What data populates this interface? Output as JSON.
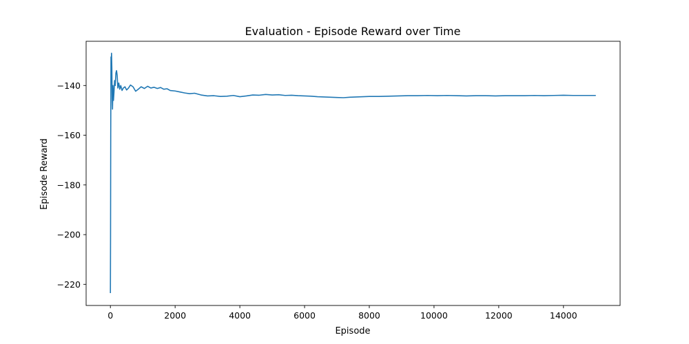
{
  "chart_data": {
    "type": "line",
    "title": "Evaluation - Episode Reward over Time",
    "xlabel": "Episode",
    "ylabel": "Episode Reward",
    "xlim": [
      -750,
      15750
    ],
    "ylim": [
      -228.5,
      -122.2
    ],
    "xticks": [
      0,
      2000,
      4000,
      6000,
      8000,
      10000,
      12000,
      14000
    ],
    "yticks": [
      -220,
      -200,
      -180,
      -160,
      -140
    ],
    "grid": false,
    "legend": "none",
    "series": [
      {
        "color": "#1f77b4",
        "x": [
          0,
          5,
          10,
          18,
          25,
          35,
          45,
          55,
          65,
          80,
          95,
          110,
          130,
          150,
          170,
          190,
          210,
          230,
          260,
          290,
          320,
          360,
          400,
          450,
          500,
          560,
          620,
          700,
          780,
          860,
          950,
          1050,
          1150,
          1250,
          1350,
          1450,
          1550,
          1650,
          1750,
          1850,
          2000,
          2150,
          2300,
          2450,
          2600,
          2800,
          3000,
          3200,
          3400,
          3600,
          3800,
          4000,
          4200,
          4400,
          4600,
          4800,
          5000,
          5200,
          5400,
          5600,
          5800,
          6000,
          6200,
          6400,
          6600,
          6800,
          7000,
          7200,
          7400,
          7600,
          7800,
          8000,
          8300,
          8600,
          8900,
          9200,
          9500,
          9800,
          10100,
          10400,
          10700,
          11000,
          11300,
          11600,
          11900,
          12200,
          12500,
          12800,
          13100,
          13400,
          13700,
          14000,
          14300,
          14600,
          15000
        ],
        "y": [
          -223.5,
          -200,
          -160,
          -128.5,
          -131,
          -127,
          -133,
          -145,
          -149.5,
          -140,
          -146,
          -143,
          -138,
          -140,
          -135,
          -134,
          -136,
          -141,
          -139,
          -141.5,
          -140,
          -142,
          -141,
          -140.5,
          -141.8,
          -141,
          -139.8,
          -140.5,
          -142.3,
          -141.5,
          -140.5,
          -141.2,
          -140.3,
          -141,
          -140.7,
          -141.2,
          -140.8,
          -141.5,
          -141.3,
          -142,
          -142.2,
          -142.6,
          -143,
          -143.3,
          -143.1,
          -143.8,
          -144.2,
          -144.1,
          -144.4,
          -144.3,
          -144,
          -144.5,
          -144.2,
          -143.8,
          -143.9,
          -143.6,
          -143.8,
          -143.7,
          -144,
          -143.9,
          -144.1,
          -144.2,
          -144.3,
          -144.5,
          -144.6,
          -144.7,
          -144.8,
          -144.9,
          -144.7,
          -144.6,
          -144.5,
          -144.4,
          -144.4,
          -144.3,
          -144.2,
          -144.1,
          -144.1,
          -144,
          -144.1,
          -144,
          -144.1,
          -144.2,
          -144.1,
          -144.1,
          -144.2,
          -144.1,
          -144.1,
          -144.1,
          -144,
          -144.1,
          -144,
          -143.9,
          -144,
          -144,
          -144
        ]
      }
    ]
  }
}
